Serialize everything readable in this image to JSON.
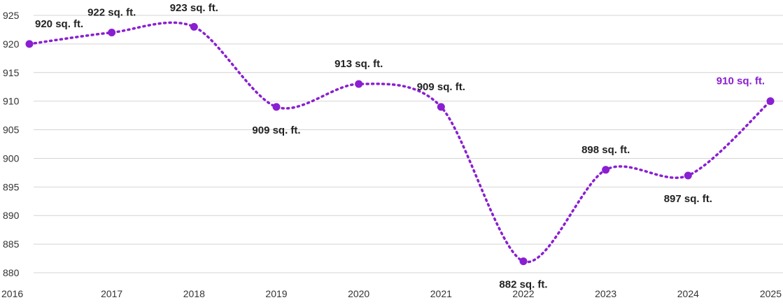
{
  "chart_data": {
    "type": "line",
    "x": [
      "2016",
      "2017",
      "2018",
      "2019",
      "2020",
      "2021",
      "2022",
      "2023",
      "2024",
      "2025"
    ],
    "series": [
      {
        "values": [
          920,
          922,
          923,
          909,
          913,
          909,
          882,
          898,
          897,
          910
        ]
      }
    ],
    "data_labels": [
      "920 sq. ft.",
      "922 sq. ft.",
      "923 sq. ft.",
      "909 sq. ft.",
      "913 sq. ft.",
      "909 sq. ft.",
      "882 sq. ft.",
      "898 sq. ft.",
      "897 sq. ft.",
      "910 sq. ft."
    ],
    "highlight_index": 9,
    "y_ticks": [
      880,
      885,
      890,
      895,
      900,
      905,
      910,
      915,
      920,
      925
    ],
    "ylim": [
      880,
      925
    ],
    "grid": true,
    "title": "",
    "xlabel": "",
    "ylabel": "",
    "colors": {
      "series": "#8a1fd1",
      "highlight_label": "#8a1fd1",
      "grid": "#d4d4d4"
    }
  }
}
